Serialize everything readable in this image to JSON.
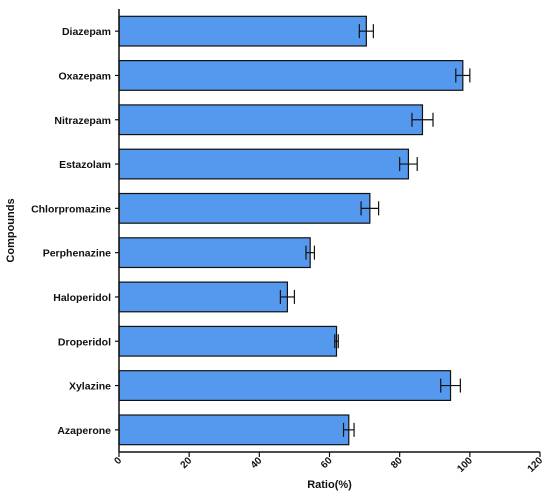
{
  "chart_data": {
    "type": "bar",
    "orientation": "horizontal",
    "categories": [
      "Diazepam",
      "Oxazepam",
      "Nitrazepam",
      "Estazolam",
      "Chlorpromazine",
      "Perphenazine",
      "Haloperidol",
      "Droperidol",
      "Xylazine",
      "Azaperone"
    ],
    "values": [
      70.5,
      98,
      86.5,
      82.5,
      71.5,
      54.5,
      48,
      62,
      94.5,
      65.5
    ],
    "errors": [
      2,
      2,
      3,
      2.5,
      2.5,
      1.2,
      2,
      0.5,
      2.8,
      1.5
    ],
    "xlabel": "Ratio(%)",
    "ylabel": "Compounds",
    "xlim": [
      0,
      120
    ],
    "xticks": [
      0,
      20,
      40,
      60,
      80,
      100,
      120
    ],
    "grid": false,
    "bar_color": "#5599ee",
    "edge_color": "#111111"
  }
}
